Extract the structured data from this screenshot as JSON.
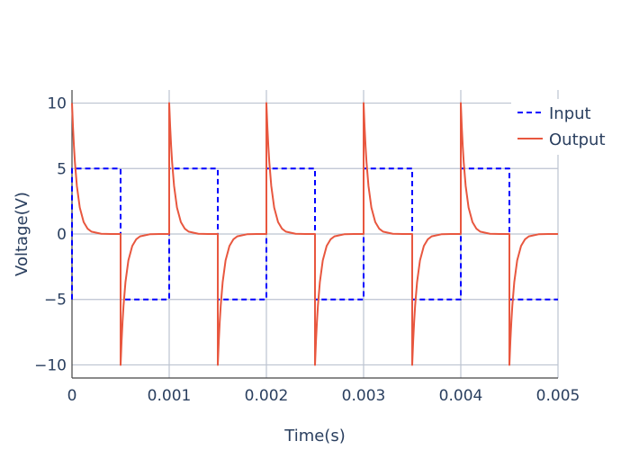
{
  "chart_data": {
    "type": "line",
    "title": "",
    "xlabel": "Time(s)",
    "ylabel": "Voltage(V)",
    "xlim": [
      0,
      0.005
    ],
    "ylim": [
      -11,
      11
    ],
    "x_ticks": [
      0,
      0.001,
      0.002,
      0.003,
      0.004,
      0.005
    ],
    "x_tick_labels": [
      "0",
      "0.001",
      "0.002",
      "0.003",
      "0.004",
      "0.005"
    ],
    "y_ticks": [
      -10,
      -5,
      0,
      5,
      10
    ],
    "y_tick_labels": [
      "−10",
      "−5",
      "0",
      "5",
      "10"
    ],
    "grid": true,
    "legend_position": "top-right",
    "series": [
      {
        "name": "Input",
        "style": "dashed",
        "color": "#0000ff",
        "x": [
          0,
          0,
          0.0005,
          0.0005,
          0.001,
          0.001,
          0.0015,
          0.0015,
          0.002,
          0.002,
          0.0025,
          0.0025,
          0.003,
          0.003,
          0.0035,
          0.0035,
          0.004,
          0.004,
          0.0045,
          0.0045,
          0.005
        ],
        "values": [
          -5,
          5,
          5,
          -5,
          -5,
          5,
          5,
          -5,
          -5,
          5,
          5,
          -5,
          -5,
          5,
          5,
          -5,
          -5,
          5,
          5,
          -5,
          -5
        ]
      },
      {
        "name": "Output",
        "style": "solid",
        "color": "#e8573f",
        "x": [
          0,
          1e-05,
          2e-05,
          3e-05,
          5e-05,
          8e-05,
          0.00012,
          0.00016,
          0.0002,
          0.0003,
          0.0004,
          0.0005,
          0.0005,
          0.00051,
          0.00052,
          0.00053,
          0.00055,
          0.00058,
          0.00062,
          0.00066,
          0.0007,
          0.0008,
          0.0009,
          0.001,
          0.001,
          0.00101,
          0.00102,
          0.00103,
          0.00105,
          0.00108,
          0.00112,
          0.00116,
          0.0012,
          0.0013,
          0.0014,
          0.0015,
          0.0015,
          0.00151,
          0.00152,
          0.00153,
          0.00155,
          0.00158,
          0.00162,
          0.00166,
          0.0017,
          0.0018,
          0.0019,
          0.002,
          0.002,
          0.00201,
          0.00202,
          0.00203,
          0.00205,
          0.00208,
          0.00212,
          0.00216,
          0.0022,
          0.0023,
          0.0024,
          0.0025,
          0.0025,
          0.00251,
          0.00252,
          0.00253,
          0.00255,
          0.00258,
          0.00262,
          0.00266,
          0.0027,
          0.0028,
          0.0029,
          0.003,
          0.003,
          0.00301,
          0.00302,
          0.00303,
          0.00305,
          0.00308,
          0.00312,
          0.00316,
          0.0032,
          0.0033,
          0.0034,
          0.0035,
          0.0035,
          0.00351,
          0.00352,
          0.00353,
          0.00355,
          0.00358,
          0.00362,
          0.00366,
          0.0037,
          0.0038,
          0.0039,
          0.004,
          0.004,
          0.00401,
          0.00402,
          0.00403,
          0.00405,
          0.00408,
          0.00412,
          0.00416,
          0.0042,
          0.0043,
          0.0044,
          0.0045,
          0.0045,
          0.00451,
          0.00452,
          0.00453,
          0.00455,
          0.00458,
          0.00462,
          0.00466,
          0.0047,
          0.0048,
          0.0049,
          0.005
        ],
        "values": [
          10,
          8.19,
          6.7,
          5.49,
          3.68,
          2.02,
          0.91,
          0.41,
          0.18,
          0.02,
          0,
          0,
          -10,
          -8.19,
          -6.7,
          -5.49,
          -3.68,
          -2.02,
          -0.91,
          -0.41,
          -0.18,
          -0.02,
          0,
          0,
          10,
          8.19,
          6.7,
          5.49,
          3.68,
          2.02,
          0.91,
          0.41,
          0.18,
          0.02,
          0,
          0,
          -10,
          -8.19,
          -6.7,
          -5.49,
          -3.68,
          -2.02,
          -0.91,
          -0.41,
          -0.18,
          -0.02,
          0,
          0,
          10,
          8.19,
          6.7,
          5.49,
          3.68,
          2.02,
          0.91,
          0.41,
          0.18,
          0.02,
          0,
          0,
          -10,
          -8.19,
          -6.7,
          -5.49,
          -3.68,
          -2.02,
          -0.91,
          -0.41,
          -0.18,
          -0.02,
          0,
          0,
          10,
          8.19,
          6.7,
          5.49,
          3.68,
          2.02,
          0.91,
          0.41,
          0.18,
          0.02,
          0,
          0,
          -10,
          -8.19,
          -6.7,
          -5.49,
          -3.68,
          -2.02,
          -0.91,
          -0.41,
          -0.18,
          -0.02,
          0,
          0,
          10,
          8.19,
          6.7,
          5.49,
          3.68,
          2.02,
          0.91,
          0.41,
          0.18,
          0.02,
          0,
          0,
          -10,
          -8.19,
          -6.7,
          -5.49,
          -3.68,
          -2.02,
          -0.91,
          -0.41,
          -0.18,
          -0.02,
          0,
          0
        ]
      }
    ]
  }
}
